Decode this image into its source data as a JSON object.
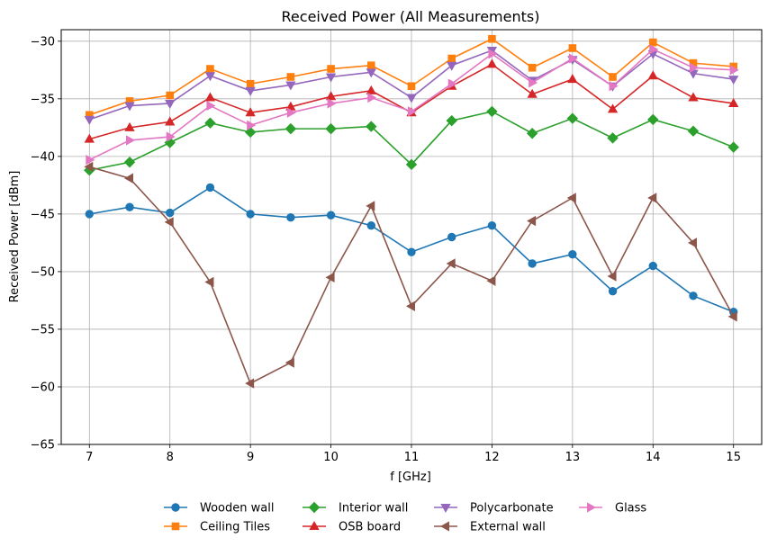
{
  "chart_data": {
    "type": "line",
    "title": "Received Power (All Measurements)",
    "xlabel": "f [GHz]",
    "ylabel": "Received Power [dBm]",
    "xlim": [
      6.65,
      15.35
    ],
    "ylim": [
      -65,
      -29
    ],
    "xticks": [
      7,
      8,
      9,
      10,
      11,
      12,
      13,
      14,
      15
    ],
    "yticks": [
      -65,
      -60,
      -55,
      -50,
      -45,
      -40,
      -35,
      -30
    ],
    "grid": true,
    "legend_placement": "bottom-center",
    "x": [
      7,
      7.5,
      8,
      8.5,
      9,
      9.5,
      10,
      10.5,
      11,
      11.5,
      12,
      12.5,
      13,
      13.5,
      14,
      14.5,
      15
    ],
    "series": [
      {
        "name": "Wooden wall",
        "color": "#1f77b4",
        "marker": "circle",
        "values": [
          -45.0,
          -44.4,
          -44.9,
          -42.7,
          -45.0,
          -45.3,
          -45.1,
          -46.0,
          -48.3,
          -47.0,
          -46.0,
          -49.3,
          -48.5,
          -51.7,
          -49.5,
          -52.1,
          -53.5
        ]
      },
      {
        "name": "Ceiling Tiles",
        "color": "#ff7f0e",
        "marker": "square",
        "values": [
          -36.4,
          -35.2,
          -34.7,
          -32.4,
          -33.7,
          -33.1,
          -32.4,
          -32.1,
          -33.9,
          -31.5,
          -29.8,
          -32.3,
          -30.6,
          -33.1,
          -30.1,
          -31.9,
          -32.2
        ]
      },
      {
        "name": "Interior wall",
        "color": "#2ca02c",
        "marker": "diamond",
        "values": [
          -41.2,
          -40.5,
          -38.8,
          -37.1,
          -37.9,
          -37.6,
          -37.6,
          -37.4,
          -40.7,
          -36.9,
          -36.1,
          -38.0,
          -36.7,
          -38.4,
          -36.8,
          -37.8,
          -39.2
        ]
      },
      {
        "name": "OSB board",
        "color": "#d62728",
        "marker": "triangle-up",
        "values": [
          -38.5,
          -37.5,
          -37.0,
          -34.9,
          -36.2,
          -35.7,
          -34.8,
          -34.3,
          -36.2,
          -33.9,
          -32.0,
          -34.6,
          -33.3,
          -35.9,
          -33.0,
          -34.9,
          -35.4
        ]
      },
      {
        "name": "Polycarbonate",
        "color": "#9467bd",
        "marker": "triangle-down",
        "values": [
          -36.8,
          -35.6,
          -35.4,
          -33.0,
          -34.3,
          -33.8,
          -33.1,
          -32.7,
          -34.9,
          -32.1,
          -30.8,
          -33.4,
          -31.6,
          -33.9,
          -31.1,
          -32.8,
          -33.3
        ]
      },
      {
        "name": "External wall",
        "color": "#8c564b",
        "marker": "triangle-left",
        "values": [
          -40.9,
          -41.9,
          -45.7,
          -50.9,
          -59.7,
          -57.9,
          -50.5,
          -44.3,
          -53.0,
          -49.3,
          -50.8,
          -45.6,
          -43.6,
          -50.4,
          -43.6,
          -47.5,
          -53.9
        ]
      },
      {
        "name": "Glass",
        "color": "#e377c2",
        "marker": "triangle-right",
        "values": [
          -40.3,
          -38.6,
          -38.3,
          -35.6,
          -37.3,
          -36.2,
          -35.4,
          -34.9,
          -36.1,
          -33.7,
          -31.1,
          -33.6,
          -31.5,
          -33.9,
          -30.7,
          -32.3,
          -32.5
        ]
      }
    ]
  }
}
